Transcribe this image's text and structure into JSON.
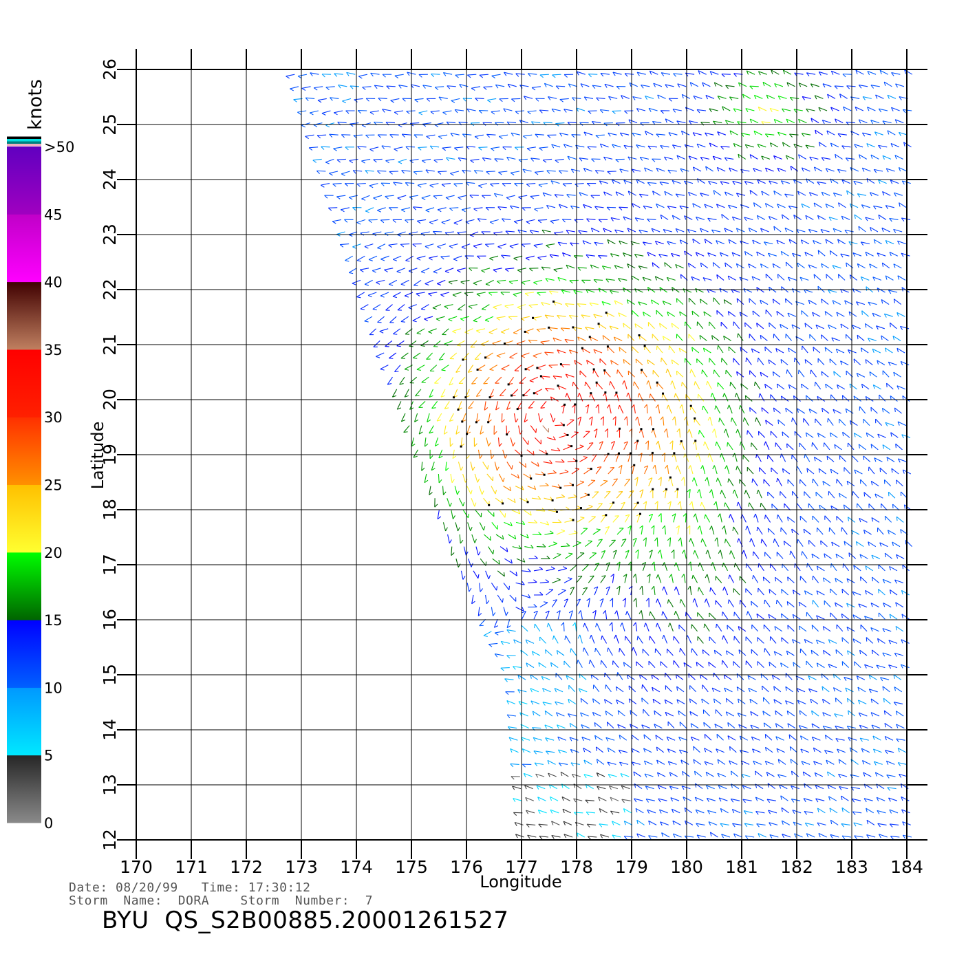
{
  "chart_data": {
    "type": "wind-vector-map",
    "xlabel": "Longitude",
    "ylabel": "Latitude",
    "xlim": [
      170,
      184
    ],
    "ylim": [
      12,
      26
    ],
    "x_ticks": [
      "170",
      "171",
      "172",
      "173",
      "174",
      "175",
      "176",
      "177",
      "178",
      "179",
      "180",
      "181",
      "182",
      "183",
      "184"
    ],
    "y_ticks": [
      "12",
      "13",
      "14",
      "15",
      "16",
      "17",
      "18",
      "19",
      "20",
      "21",
      "22",
      "23",
      "24",
      "25",
      "26"
    ],
    "grid": true,
    "colorbar": {
      "units": "knots",
      "placement": "left",
      "labels": [
        "0",
        "5",
        "10",
        "15",
        "20",
        "25",
        "30",
        "35",
        "40",
        "45",
        ">50"
      ],
      "bands": [
        {
          "from": 0,
          "to": 5,
          "colors": [
            "#8a8a8a",
            "#262626"
          ]
        },
        {
          "from": 5,
          "to": 10,
          "colors": [
            "#00e8ff",
            "#0098ff"
          ]
        },
        {
          "from": 10,
          "to": 15,
          "colors": [
            "#0060ff",
            "#0000ff"
          ]
        },
        {
          "from": 15,
          "to": 20,
          "colors": [
            "#006400",
            "#00ff00"
          ]
        },
        {
          "from": 20,
          "to": 25,
          "colors": [
            "#ffff30",
            "#ffc000"
          ]
        },
        {
          "from": 25,
          "to": 30,
          "colors": [
            "#ff9000",
            "#ff3000"
          ]
        },
        {
          "from": 30,
          "to": 35,
          "colors": [
            "#ff2000",
            "#ff0000"
          ]
        },
        {
          "from": 35,
          "to": 40,
          "colors": [
            "#c08060",
            "#400000"
          ]
        },
        {
          "from": 40,
          "to": 45,
          "colors": [
            "#ff00ff",
            "#c000c8"
          ]
        },
        {
          "from": 45,
          "to": 50,
          "colors": [
            "#a000c0",
            "#6000c0"
          ]
        }
      ],
      "top_stripes": [
        "#f0b0c0",
        "#008080",
        "#00e0e0",
        "#000000"
      ]
    },
    "wind_field": {
      "swath_lat_range": [
        12,
        26
      ],
      "swath_left_edge_lon": [
        [
          26,
          172.8
        ],
        [
          21,
          174.4
        ],
        [
          17,
          175.8
        ],
        [
          15,
          176.8
        ],
        [
          12,
          177.0
        ]
      ],
      "storm_center": {
        "lon": 177.6,
        "lat": 19.8
      },
      "peak_speed_knots": 34,
      "ambient_speed_knots": 11,
      "secondary_region": {
        "lon": 181.5,
        "lat": 25.2
      }
    }
  },
  "footer": {
    "info_line_1": "Date: 08/20/99   Time: 17:30:12",
    "info_line_2": "Storm  Name:  DORA    Storm  Number:  7",
    "product_id": "BYU  QS_S2B00885.20001261527"
  }
}
